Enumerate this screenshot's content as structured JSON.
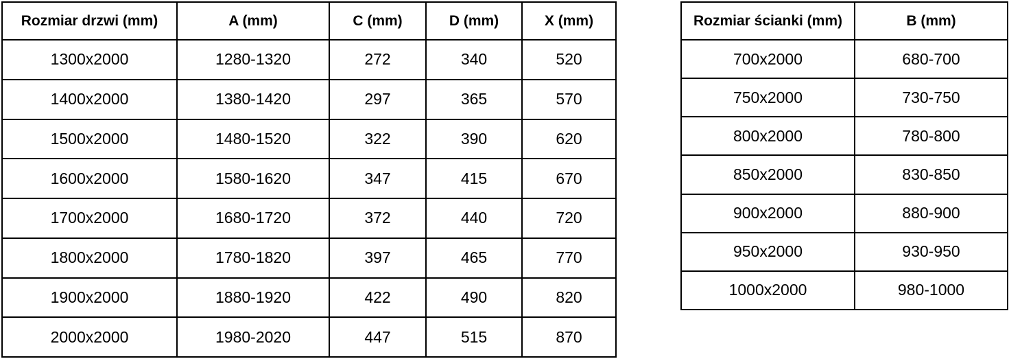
{
  "tables": [
    {
      "name": "door-sizes",
      "headers": [
        "Rozmiar drzwi (mm)",
        "A (mm)",
        "C (mm)",
        "D (mm)",
        "X (mm)"
      ],
      "rows": [
        [
          "1300x2000",
          "1280-1320",
          "272",
          "340",
          "520"
        ],
        [
          "1400x2000",
          "1380-1420",
          "297",
          "365",
          "570"
        ],
        [
          "1500x2000",
          "1480-1520",
          "322",
          "390",
          "620"
        ],
        [
          "1600x2000",
          "1580-1620",
          "347",
          "415",
          "670"
        ],
        [
          "1700x2000",
          "1680-1720",
          "372",
          "440",
          "720"
        ],
        [
          "1800x2000",
          "1780-1820",
          "397",
          "465",
          "770"
        ],
        [
          "1900x2000",
          "1880-1920",
          "422",
          "490",
          "820"
        ],
        [
          "2000x2000",
          "1980-2020",
          "447",
          "515",
          "870"
        ]
      ]
    },
    {
      "name": "wall-sizes",
      "headers": [
        "Rozmiar ścianki (mm)",
        "B (mm)"
      ],
      "rows": [
        [
          "700x2000",
          "680-700"
        ],
        [
          "750x2000",
          "730-750"
        ],
        [
          "800x2000",
          "780-800"
        ],
        [
          "850x2000",
          "830-850"
        ],
        [
          "900x2000",
          "880-900"
        ],
        [
          "950x2000",
          "930-950"
        ],
        [
          "1000x2000",
          "980-1000"
        ]
      ]
    }
  ],
  "colors": {
    "border": "#000000",
    "text": "#000000",
    "background": "#ffffff"
  }
}
